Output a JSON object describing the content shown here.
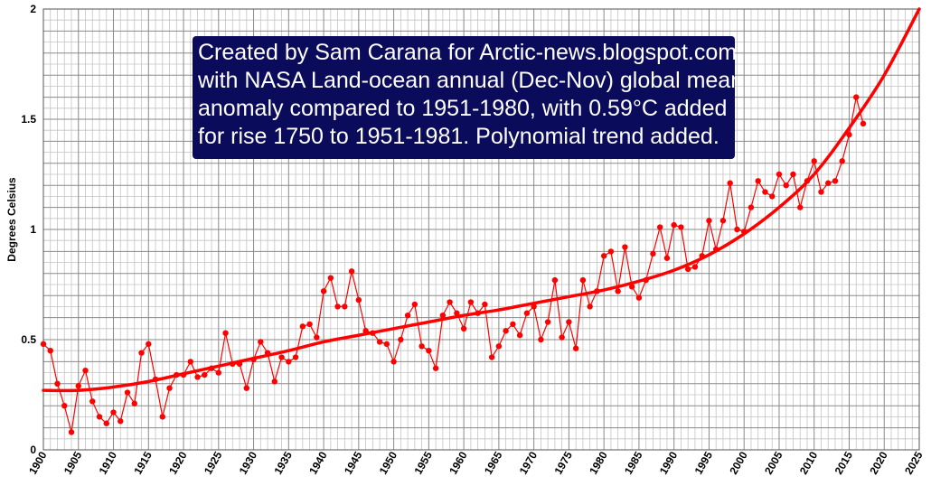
{
  "chart_data": {
    "type": "line",
    "title": "",
    "xlabel": "",
    "ylabel": "Degrees Celsius",
    "xlim": [
      1900,
      2025
    ],
    "ylim": [
      0,
      2
    ],
    "x_ticks": [
      1900,
      1905,
      1910,
      1915,
      1920,
      1925,
      1930,
      1935,
      1940,
      1945,
      1950,
      1955,
      1960,
      1965,
      1970,
      1975,
      1980,
      1985,
      1990,
      1995,
      2000,
      2005,
      2010,
      2015,
      2020,
      2025
    ],
    "y_ticks": [
      {
        "value": 0,
        "label": "0"
      },
      {
        "value": 0.5,
        "label": "0.5"
      },
      {
        "value": 1,
        "label": "1"
      },
      {
        "value": 1.5,
        "label": "1.5"
      },
      {
        "value": 2,
        "label": "2"
      }
    ],
    "grid": true,
    "series": [
      {
        "name": "NASA Land-ocean annual global mean anomaly (+0.59°C)",
        "color": "#ff0000",
        "x_start": 1900,
        "values": [
          0.48,
          0.45,
          0.3,
          0.2,
          0.08,
          0.29,
          0.36,
          0.22,
          0.15,
          0.12,
          0.17,
          0.13,
          0.26,
          0.21,
          0.44,
          0.48,
          0.32,
          0.15,
          0.28,
          0.34,
          0.34,
          0.4,
          0.33,
          0.34,
          0.37,
          0.35,
          0.53,
          0.39,
          0.39,
          0.28,
          0.41,
          0.49,
          0.44,
          0.31,
          0.42,
          0.4,
          0.42,
          0.56,
          0.57,
          0.51,
          0.72,
          0.78,
          0.65,
          0.65,
          0.81,
          0.68,
          0.54,
          0.53,
          0.49,
          0.48,
          0.4,
          0.5,
          0.61,
          0.66,
          0.47,
          0.45,
          0.37,
          0.61,
          0.67,
          0.62,
          0.55,
          0.67,
          0.62,
          0.66,
          0.42,
          0.47,
          0.54,
          0.57,
          0.52,
          0.62,
          0.65,
          0.5,
          0.58,
          0.77,
          0.51,
          0.58,
          0.46,
          0.77,
          0.65,
          0.72,
          0.88,
          0.9,
          0.72,
          0.92,
          0.74,
          0.69,
          0.77,
          0.89,
          1.01,
          0.87,
          1.02,
          1.01,
          0.82,
          0.83,
          0.88,
          1.04,
          0.91,
          1.04,
          1.21,
          1.0,
          0.99,
          1.1,
          1.22,
          1.17,
          1.15,
          1.25,
          1.2,
          1.25,
          1.1,
          1.22,
          1.31,
          1.17,
          1.21,
          1.22,
          1.31,
          1.43,
          1.6,
          1.48
        ]
      },
      {
        "name": "Polynomial trend",
        "color": "#ff0000",
        "style": "trend",
        "x": [
          1900,
          1905,
          1910,
          1915,
          1920,
          1925,
          1930,
          1935,
          1940,
          1945,
          1950,
          1955,
          1960,
          1965,
          1970,
          1975,
          1980,
          1985,
          1990,
          1995,
          2000,
          2005,
          2010,
          2015,
          2020,
          2025
        ],
        "values": [
          0.27,
          0.27,
          0.285,
          0.31,
          0.345,
          0.38,
          0.415,
          0.45,
          0.49,
          0.52,
          0.55,
          0.58,
          0.61,
          0.635,
          0.665,
          0.695,
          0.725,
          0.765,
          0.815,
          0.885,
          0.98,
          1.1,
          1.25,
          1.46,
          1.7,
          2.0
        ]
      }
    ]
  },
  "annotation": {
    "lines": [
      "Created by Sam Carana for Arctic-news.blogspot.com",
      "with NASA Land-ocean annual (Dec-Nov) global mean",
      "anomaly compared to 1951-1980, with 0.59°C added",
      "for rise 1750 to 1951-1981. Polynomial trend added."
    ]
  }
}
